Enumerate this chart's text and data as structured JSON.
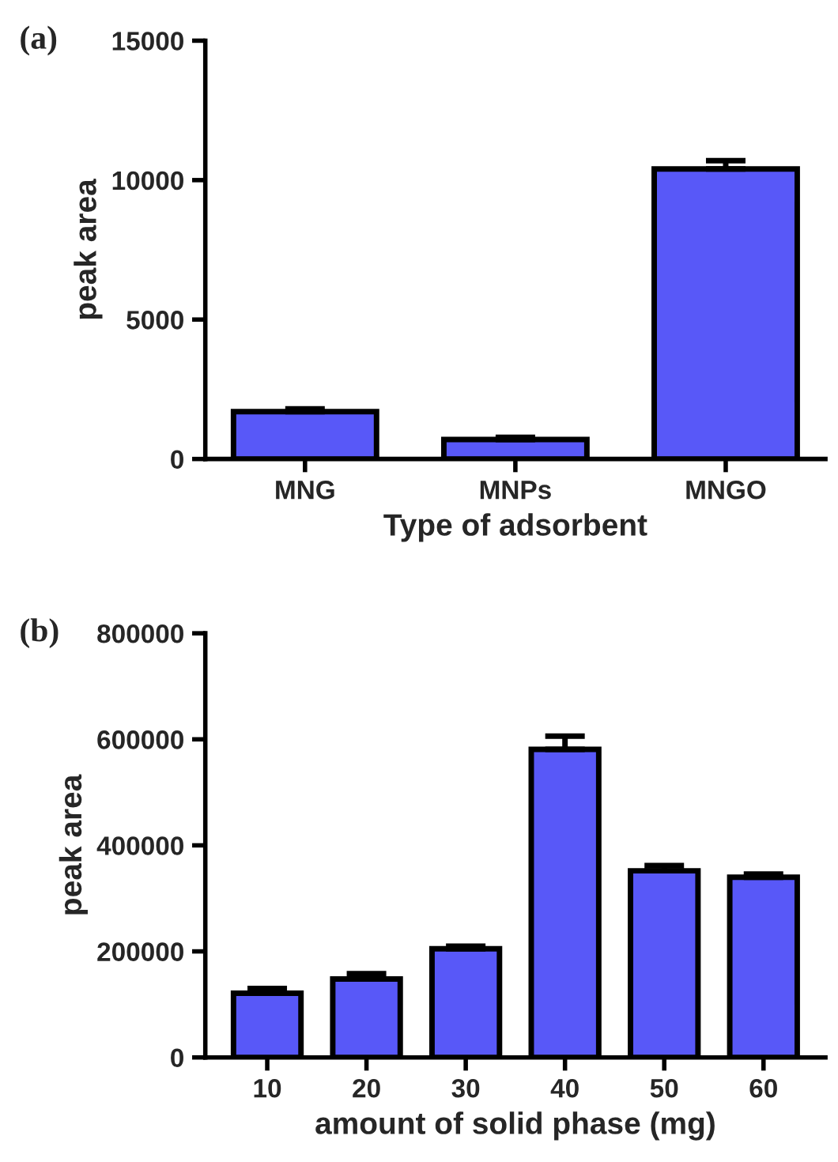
{
  "chart_data": [
    {
      "type": "bar",
      "categories": [
        "MNG",
        "MNPs",
        "MNGO"
      ],
      "values": [
        1700,
        700,
        10400
      ],
      "errors": [
        [
          1700,
          1800
        ],
        [
          700,
          780
        ],
        [
          10400,
          10700
        ]
      ],
      "color": "#5858f8",
      "ylim": [
        0,
        15000
      ],
      "yticks": [
        0,
        5000,
        10000,
        15000
      ],
      "xlabel": "Type of adsorbent",
      "ylabel": "peak area",
      "annotations": [
        "(a)"
      ]
    },
    {
      "type": "bar",
      "categories": [
        "10",
        "20",
        "30",
        "40",
        "50",
        "60"
      ],
      "values": [
        121000,
        148000,
        205000,
        581000,
        352000,
        340000
      ],
      "errors": [
        [
          121000,
          130000
        ],
        [
          148000,
          158000
        ],
        [
          205000,
          210000
        ],
        [
          581000,
          606000
        ],
        [
          352000,
          362000
        ],
        [
          340000,
          346000
        ]
      ],
      "color": "#5858f8",
      "ylim": [
        0,
        800000
      ],
      "yticks": [
        0,
        200000,
        400000,
        600000,
        800000
      ],
      "xlabel": "amount of solid phase (mg)",
      "ylabel": "peak area",
      "annotations": [
        "(b)"
      ]
    }
  ]
}
